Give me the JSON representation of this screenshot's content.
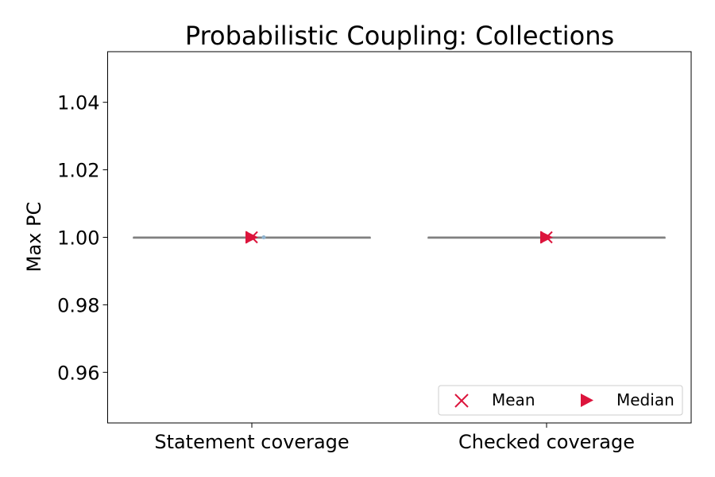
{
  "chart_data": {
    "type": "box",
    "title": "Probabilistic Coupling: Collections",
    "xlabel": "",
    "ylabel": "Max PC",
    "categories": [
      "Statement coverage",
      "Checked coverage"
    ],
    "ylim": [
      0.945,
      1.055
    ],
    "yticks": [
      0.96,
      0.98,
      1.0,
      1.02,
      1.04
    ],
    "ytick_labels": [
      "0.96",
      "0.98",
      "1.00",
      "1.02",
      "1.04"
    ],
    "series": [
      {
        "category": "Statement coverage",
        "min": 1.0,
        "q1": 1.0,
        "median": 1.0,
        "q3": 1.0,
        "max": 1.0,
        "mean": 1.0
      },
      {
        "category": "Checked coverage",
        "min": 1.0,
        "q1": 1.0,
        "median": 1.0,
        "q3": 1.0,
        "max": 1.0,
        "mean": 1.0
      }
    ],
    "legend": {
      "placement": "lower-right",
      "entries": [
        {
          "label": "Mean",
          "marker": "x"
        },
        {
          "label": "Median",
          "marker": "triangle-right"
        }
      ]
    },
    "colors": {
      "marker": "#dc143c",
      "box_line": "#808080",
      "point": "#8fb3cf"
    },
    "grid": false
  }
}
